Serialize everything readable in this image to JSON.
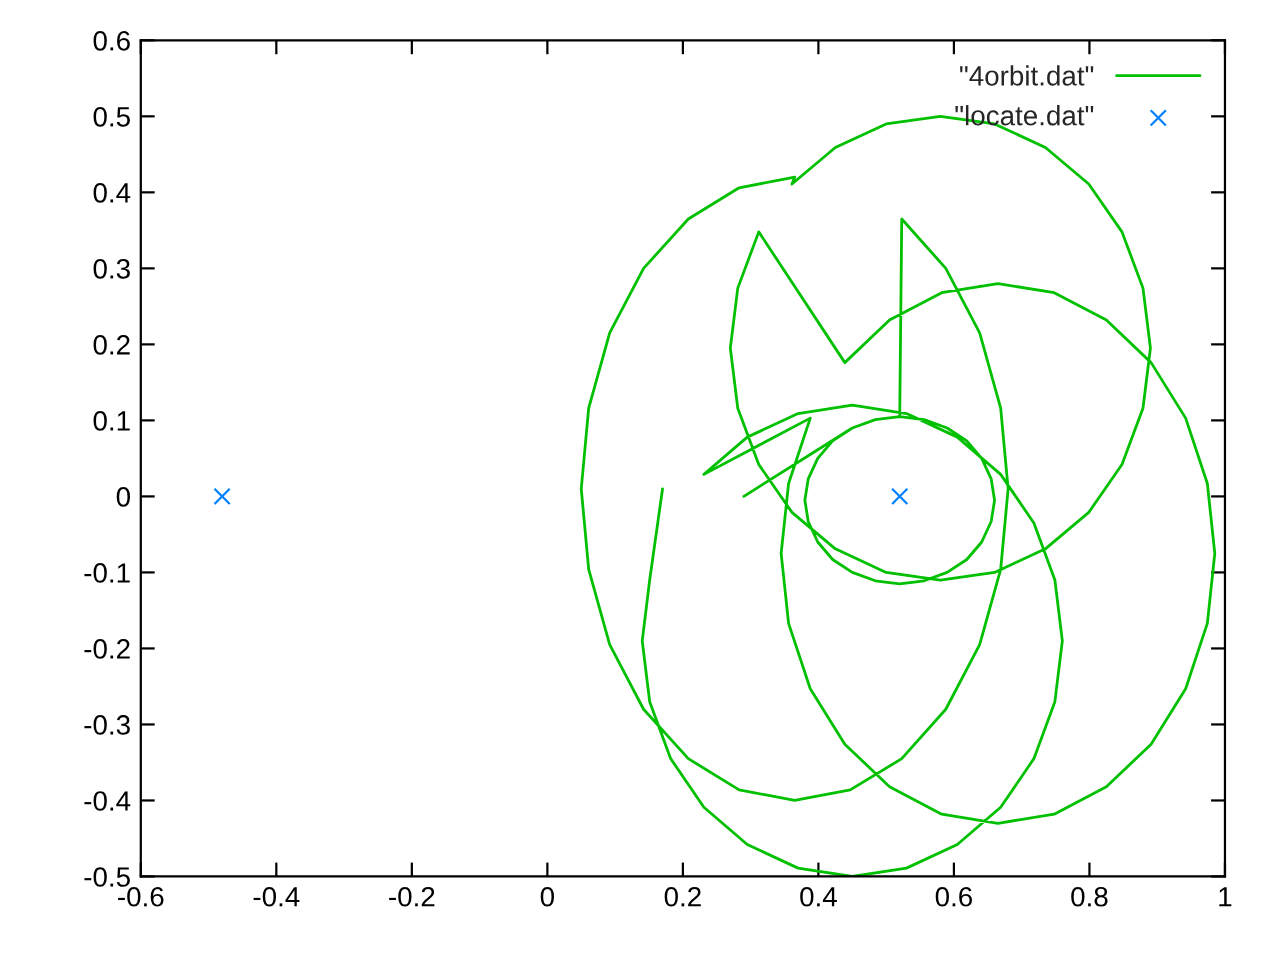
{
  "chart_data": {
    "type": "line",
    "xlim": [
      -0.6,
      1
    ],
    "ylim": [
      -0.5,
      0.6
    ],
    "xticks": [
      -0.6,
      -0.4,
      -0.2,
      0,
      0.2,
      0.4,
      0.6,
      0.8,
      1
    ],
    "yticks": [
      -0.5,
      -0.4,
      -0.3,
      -0.2,
      -0.1,
      0,
      0.1,
      0.2,
      0.3,
      0.4,
      0.5,
      0.6
    ],
    "grid": false,
    "legend": "top right",
    "series": [
      {
        "name": "\"4orbit.dat\"",
        "color": "#00c000",
        "marker": "none",
        "line_style": "solid",
        "x": [
          0.17,
          0.151,
          0.14,
          0.151,
          0.182,
          0.231,
          0.295,
          0.37,
          0.45,
          0.53,
          0.605,
          0.669,
          0.718,
          0.749,
          0.76,
          0.749,
          0.718,
          0.669,
          0.605,
          0.53,
          0.45,
          0.37,
          0.295,
          0.231,
          0.388,
          0.356,
          0.345,
          0.356,
          0.388,
          0.439,
          0.505,
          0.582,
          0.665,
          0.748,
          0.825,
          0.891,
          0.942,
          0.974,
          0.985,
          0.974,
          0.942,
          0.891,
          0.825,
          0.748,
          0.665,
          0.582,
          0.505,
          0.439,
          0.312,
          0.281,
          0.27,
          0.281,
          0.312,
          0.361,
          0.425,
          0.5,
          0.58,
          0.66,
          0.735,
          0.799,
          0.848,
          0.879,
          0.89,
          0.879,
          0.848,
          0.799,
          0.735,
          0.66,
          0.58,
          0.5,
          0.425,
          0.361,
          0.365,
          0.283,
          0.208,
          0.142,
          0.092,
          0.061,
          0.05,
          0.061,
          0.092,
          0.142,
          0.208,
          0.283,
          0.365,
          0.447,
          0.523,
          0.588,
          0.638,
          0.669,
          0.68,
          0.669,
          0.638,
          0.588,
          0.523,
          0.52,
          0.484,
          0.45,
          0.421,
          0.399,
          0.385,
          0.38,
          0.385,
          0.399,
          0.421,
          0.45,
          0.484,
          0.52,
          0.556,
          0.59,
          0.619,
          0.641,
          0.655,
          0.66,
          0.655,
          0.641,
          0.619,
          0.59,
          0.556,
          0.52,
          0.484,
          0.45,
          0.29
        ],
        "values": [
          0.01,
          -0.11,
          -0.19,
          -0.27,
          -0.345,
          -0.409,
          -0.458,
          -0.489,
          -0.5,
          -0.489,
          -0.458,
          -0.409,
          -0.345,
          -0.27,
          -0.19,
          -0.11,
          -0.035,
          0.029,
          0.078,
          0.109,
          0.12,
          0.109,
          0.078,
          0.029,
          0.103,
          0.017,
          -0.075,
          -0.167,
          -0.253,
          -0.326,
          -0.382,
          -0.418,
          -0.43,
          -0.418,
          -0.382,
          -0.326,
          -0.253,
          -0.167,
          -0.075,
          0.017,
          0.103,
          0.176,
          0.232,
          0.268,
          0.28,
          0.268,
          0.232,
          0.176,
          0.348,
          0.274,
          0.195,
          0.116,
          0.042,
          -0.021,
          -0.069,
          -0.1,
          -0.11,
          -0.1,
          -0.069,
          -0.021,
          0.042,
          0.116,
          0.195,
          0.274,
          0.348,
          0.411,
          0.459,
          0.49,
          0.5,
          0.49,
          0.459,
          0.411,
          0.42,
          0.406,
          0.365,
          0.3,
          0.215,
          0.116,
          0.01,
          -0.096,
          -0.195,
          -0.28,
          -0.345,
          -0.386,
          -0.4,
          -0.386,
          -0.345,
          -0.28,
          -0.195,
          -0.096,
          0.01,
          0.116,
          0.215,
          0.3,
          0.365,
          0.105,
          0.101,
          0.09,
          0.073,
          0.05,
          0.023,
          -0.005,
          -0.033,
          -0.06,
          -0.083,
          -0.1,
          -0.111,
          -0.115,
          -0.111,
          -0.1,
          -0.083,
          -0.06,
          -0.033,
          -0.005,
          0.023,
          0.05,
          0.073,
          0.09,
          0.101,
          0.105,
          0.101,
          0.09,
          0.0
        ]
      },
      {
        "name": "\"locate.dat\"",
        "type": "scatter",
        "color": "#0080ff",
        "marker": "cross",
        "x": [
          -0.48,
          0.52
        ],
        "values": [
          0,
          0
        ]
      }
    ]
  }
}
